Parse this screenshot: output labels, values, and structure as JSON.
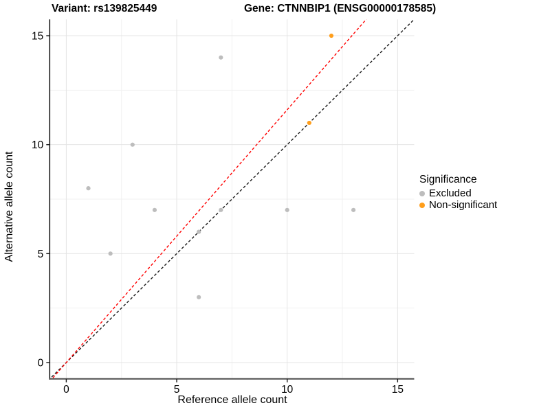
{
  "header": {
    "variant_title": "Variant: rs139825449",
    "gene_title": "Gene: CTNNBIP1 (ENSG00000178585)"
  },
  "chart_data": {
    "type": "scatter",
    "title": "Variant: rs139825449 / Gene: CTNNBIP1 (ENSG00000178585)",
    "xlabel": "Reference allele count",
    "ylabel": "Alternative allele count",
    "xlim": [
      -0.75,
      15.75
    ],
    "ylim": [
      -0.75,
      15.75
    ],
    "x_ticks": [
      0,
      5,
      10,
      15
    ],
    "y_ticks": [
      0,
      5,
      10,
      15
    ],
    "minor_ticks": [
      2.5,
      7.5,
      12.5
    ],
    "grid": "major+minor",
    "legend_position": "right",
    "series": [
      {
        "name": "Excluded",
        "color": "#BDBDBD",
        "points": [
          [
            1,
            8
          ],
          [
            2,
            5
          ],
          [
            3,
            10
          ],
          [
            4,
            7
          ],
          [
            6,
            3
          ],
          [
            6,
            6
          ],
          [
            7,
            7
          ],
          [
            7,
            14
          ],
          [
            10,
            7
          ],
          [
            13,
            7
          ]
        ]
      },
      {
        "name": "Non-significant",
        "color": "#FF9E1B",
        "points": [
          [
            11,
            11
          ],
          [
            12,
            15
          ]
        ]
      }
    ],
    "lines": [
      {
        "name": "identity-line",
        "color": "#1A1A1A",
        "slope": 1,
        "intercept": 0,
        "style": "dashed"
      },
      {
        "name": "expected-ratio-line",
        "color": "#FF0000",
        "slope": 1.16,
        "intercept": 0,
        "style": "dashed"
      }
    ],
    "legend": {
      "title": "Significance",
      "items": [
        {
          "label": "Excluded",
          "color": "#BDBDBD"
        },
        {
          "label": "Non-significant",
          "color": "#FF9E1B"
        }
      ]
    }
  }
}
